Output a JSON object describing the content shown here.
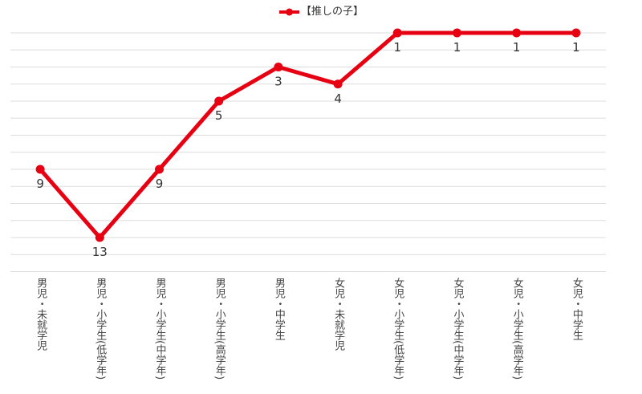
{
  "chart_data": {
    "type": "line",
    "categories": [
      "男児・未就学児",
      "男児・小学生(低学年)",
      "男児・小学生(中学年)",
      "男児・小学生(高学年)",
      "男児・中学生",
      "女児・未就学児",
      "女児・小学生(低学年)",
      "女児・小学生(中学年)",
      "女児・小学生(高学年)",
      "女児・中学生"
    ],
    "series": [
      {
        "name": "【推しの子】",
        "values": [
          9,
          13,
          9,
          5,
          3,
          4,
          1,
          1,
          1,
          1
        ],
        "color": "#e60012"
      }
    ],
    "title": "",
    "xlabel": "",
    "ylabel": "",
    "ylim": [
      1,
      15
    ],
    "y_reversed": true,
    "y_axis_labels_shown": false,
    "grid": true,
    "grid_color": "#dddddd",
    "data_labels": true,
    "legend_position": "top-center"
  }
}
